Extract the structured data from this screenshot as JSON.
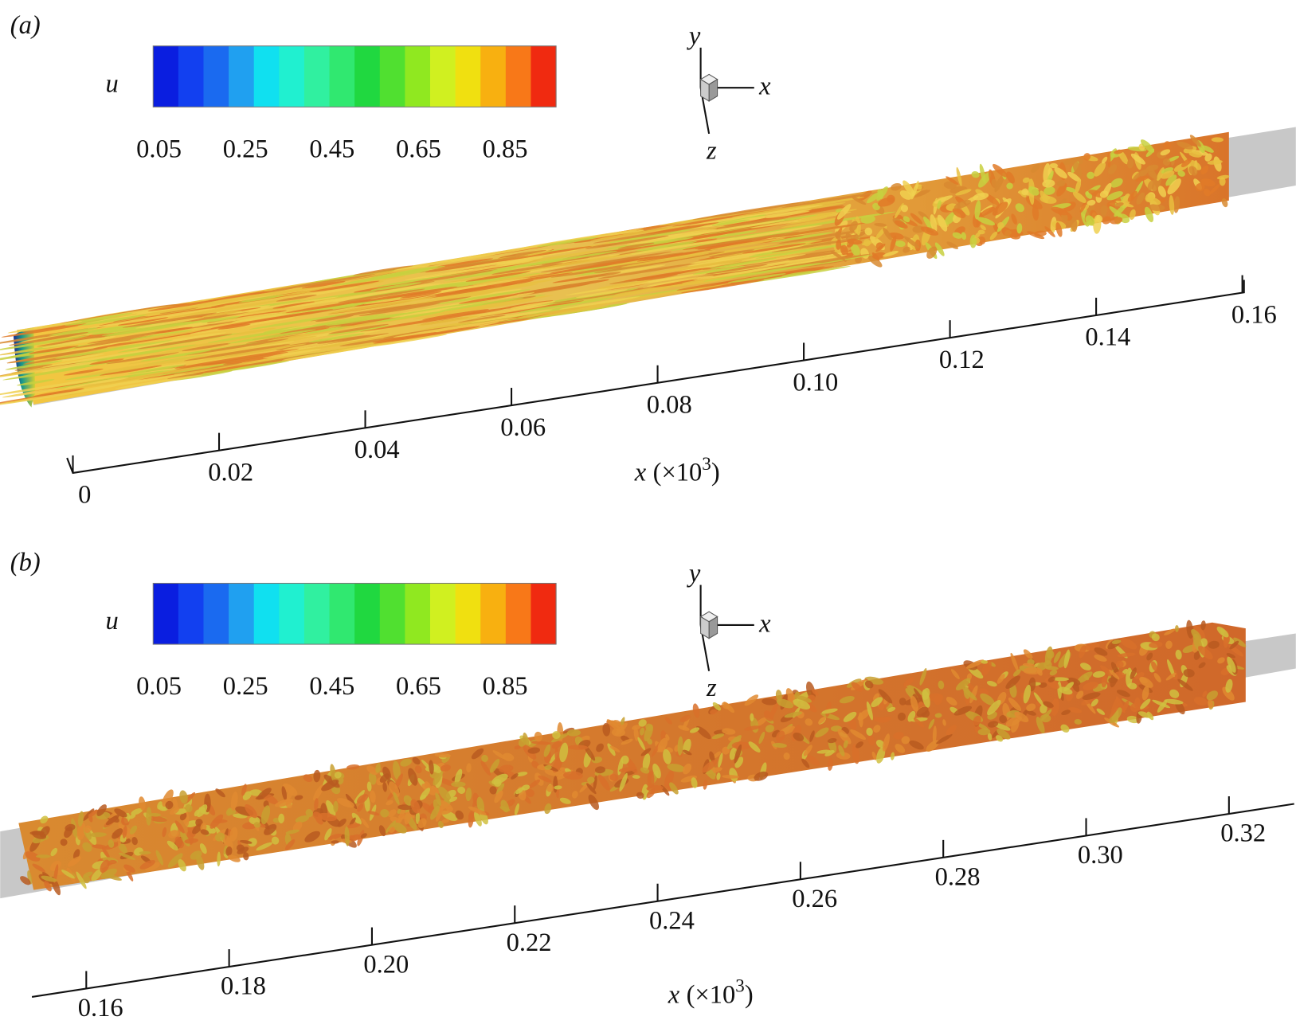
{
  "figure": {
    "panels": [
      {
        "label": "(a)",
        "colorbar": {
          "label": "u",
          "ticks": [
            "0.05",
            "0.25",
            "0.45",
            "0.65",
            "0.85"
          ]
        },
        "triad": {
          "x": "x",
          "y": "y",
          "z": "z"
        },
        "axis": {
          "ticks": [
            "0",
            "0.02",
            "0.04",
            "0.06",
            "0.08",
            "0.10",
            "0.12",
            "0.14",
            "0.16"
          ],
          "label": {
            "var": "x",
            "open": "(×10",
            "exp": "3",
            "close": ")"
          }
        }
      },
      {
        "label": "(b)",
        "colorbar": {
          "label": "u",
          "ticks": [
            "0.05",
            "0.25",
            "0.45",
            "0.65",
            "0.85"
          ]
        },
        "triad": {
          "x": "x",
          "y": "y",
          "z": "z"
        },
        "axis": {
          "ticks": [
            "0.16",
            "0.18",
            "0.20",
            "0.22",
            "0.24",
            "0.26",
            "0.28",
            "0.30",
            "0.32"
          ],
          "label": {
            "var": "x",
            "open": "(×10",
            "exp": "3",
            "close": ")"
          }
        }
      }
    ]
  }
}
